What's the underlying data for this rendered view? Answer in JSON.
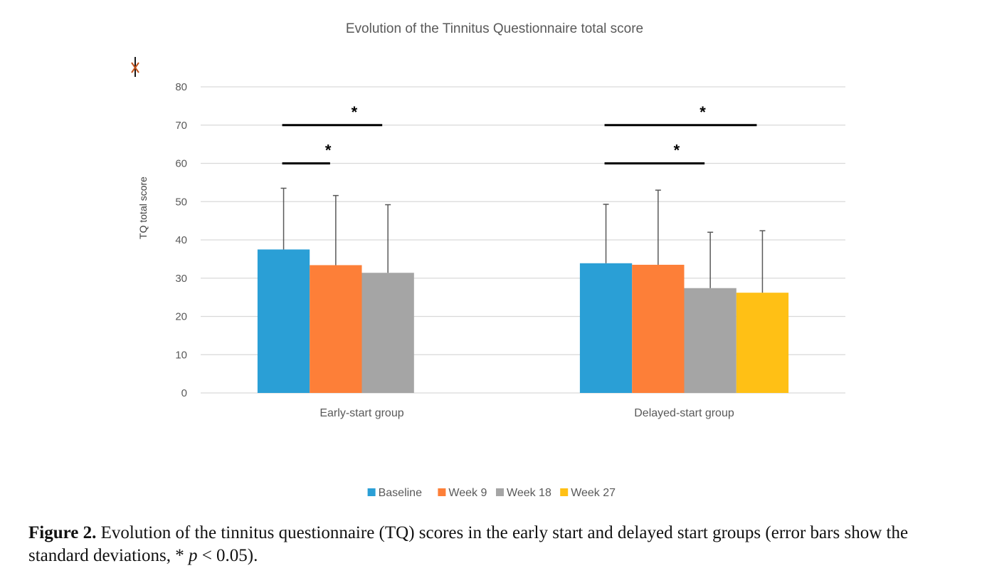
{
  "chart_data": {
    "type": "bar",
    "title": "Evolution of the Tinnitus Questionnaire total score",
    "xlabel": "",
    "ylabel": "TQ total score",
    "ylim": [
      0,
      80
    ],
    "yticks": [
      0,
      10,
      20,
      30,
      40,
      50,
      60,
      70,
      80
    ],
    "grid": true,
    "legend_position": "bottom",
    "categories": [
      "Early-start group",
      "Delayed-start group"
    ],
    "series": [
      {
        "name": "Baseline",
        "color": "#2A9FD6",
        "values": [
          37.5,
          33.9
        ],
        "sd_upper": [
          53.5,
          49.3
        ]
      },
      {
        "name": "Week 9",
        "color": "#FD7F38",
        "values": [
          33.4,
          33.5
        ],
        "sd_upper": [
          51.6,
          53.0
        ]
      },
      {
        "name": "Week 18",
        "color": "#A5A5A5",
        "values": [
          31.4,
          27.4
        ],
        "sd_upper": [
          49.2,
          42.0
        ]
      },
      {
        "name": "Week 27",
        "color": "#FFC015",
        "values": [
          null,
          26.2
        ],
        "sd_upper": [
          null,
          42.4
        ]
      }
    ],
    "annotations": [
      {
        "category": 0,
        "from_series": 0,
        "to_series": 2,
        "y": 70,
        "label": "*"
      },
      {
        "category": 0,
        "from_series": 0,
        "to_series": 1,
        "y": 60,
        "label": "*"
      },
      {
        "category": 1,
        "from_series": 0,
        "to_series": 3,
        "y": 70,
        "label": "*"
      },
      {
        "category": 1,
        "from_series": 0,
        "to_series": 2,
        "y": 60,
        "label": "*"
      }
    ]
  },
  "caption": {
    "label": "Figure 2.",
    "text_1": " Evolution of the tinnitus questionnaire (TQ) scores in the early start and delayed start groups (error bars show the standard deviations, * ",
    "p": "p",
    "text_2": " < 0.05)."
  }
}
